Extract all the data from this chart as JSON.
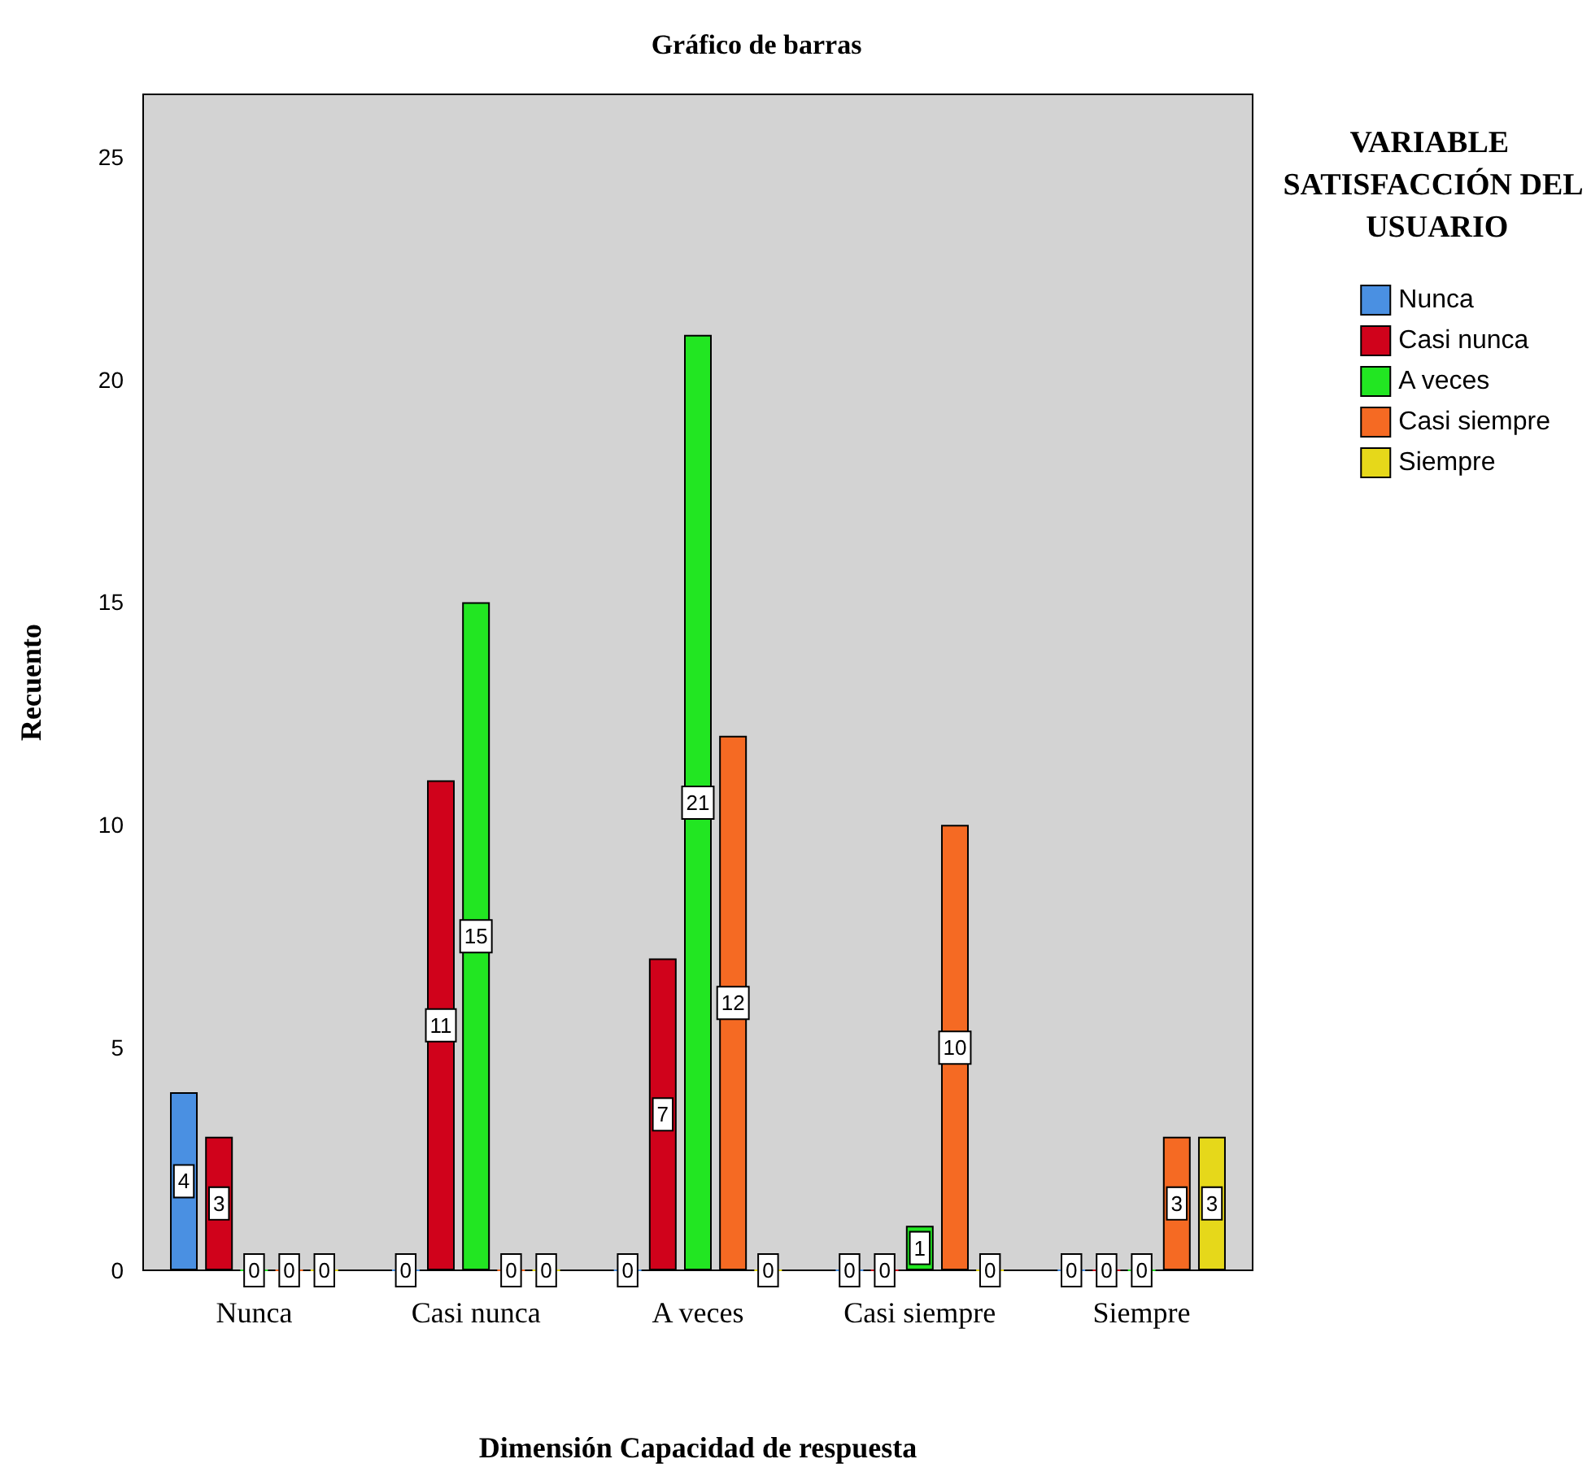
{
  "chart_data": {
    "type": "bar",
    "title": "Gráfico de barras",
    "xlabel": "Dimensión Capacidad de respuesta",
    "ylabel": "Recuento",
    "legend_title": "VARIABLE SATISFACCIÓN DEL USUARIO",
    "categories": [
      "Nunca",
      "Casi nunca",
      "A veces",
      "Casi siempre",
      "Siempre"
    ],
    "series": [
      {
        "name": "Nunca",
        "color": "#4a90e2",
        "values": [
          4,
          0,
          0,
          0,
          0
        ]
      },
      {
        "name": "Casi nunca",
        "color": "#d0021b",
        "values": [
          3,
          11,
          7,
          0,
          0
        ]
      },
      {
        "name": "A veces",
        "color": "#22e622",
        "values": [
          0,
          15,
          21,
          1,
          0
        ]
      },
      {
        "name": "Casi siempre",
        "color": "#f56a23",
        "values": [
          0,
          0,
          12,
          10,
          3
        ]
      },
      {
        "name": "Siempre",
        "color": "#e6d81a",
        "values": [
          0,
          0,
          0,
          0,
          3
        ]
      }
    ],
    "ylim": [
      0,
      26.4
    ],
    "yticks": [
      0,
      5,
      10,
      15,
      20,
      25
    ],
    "grid": false,
    "legend": "right",
    "data_labels": true
  }
}
